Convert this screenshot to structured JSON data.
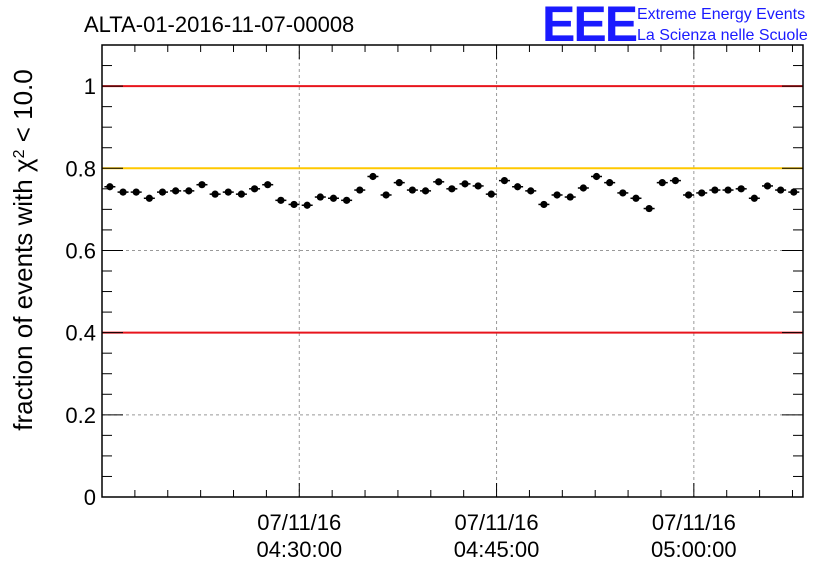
{
  "logo": {
    "letters": "EEE",
    "line1": "Extreme Energy Events",
    "line2": "La Scienza nelle Scuole"
  },
  "colors": {
    "red_line": "#e8141c",
    "yellow_line": "#ffc800",
    "logo_blue": "#1a1aff",
    "points": "#000000",
    "grid": "#999999"
  },
  "chart_data": {
    "type": "scatter",
    "title": "ALTA-01-2016-11-07-00008",
    "ylabel_prefix": "fraction of events with ",
    "ylabel_symbol": "χ",
    "ylabel_exp": "2",
    "ylabel_suffix": " < 10.0",
    "ylim": [
      0,
      1.1
    ],
    "yticks": [
      0,
      0.2,
      0.4,
      0.6,
      0.8,
      1
    ],
    "ytick_labels": [
      "0",
      "0.2",
      "0.4",
      "0.6",
      "0.8",
      "1"
    ],
    "xlim_minutes": [
      0,
      53.3
    ],
    "xticks": [
      {
        "minute": 15,
        "date": "07/11/16",
        "time": "04:30:00"
      },
      {
        "minute": 30,
        "date": "07/11/16",
        "time": "04:45:00"
      },
      {
        "minute": 45,
        "date": "07/11/16",
        "time": "05:00:00"
      }
    ],
    "grid": true,
    "reference_lines": [
      {
        "y": 1.0,
        "color": "red"
      },
      {
        "y": 0.8,
        "color": "yellow"
      },
      {
        "y": 0.4,
        "color": "red"
      }
    ],
    "x_first": 0.6,
    "x_step": 1.0,
    "values": [
      0.755,
      0.742,
      0.742,
      0.727,
      0.742,
      0.745,
      0.745,
      0.76,
      0.737,
      0.742,
      0.737,
      0.75,
      0.76,
      0.722,
      0.712,
      0.71,
      0.73,
      0.727,
      0.722,
      0.747,
      0.78,
      0.735,
      0.765,
      0.747,
      0.745,
      0.767,
      0.75,
      0.762,
      0.757,
      0.737,
      0.77,
      0.755,
      0.745,
      0.712,
      0.735,
      0.73,
      0.752,
      0.78,
      0.765,
      0.74,
      0.727,
      0.702,
      0.765,
      0.77,
      0.735,
      0.74,
      0.747,
      0.747,
      0.75,
      0.727,
      0.757,
      0.747,
      0.742
    ],
    "y_error": 0.008
  }
}
